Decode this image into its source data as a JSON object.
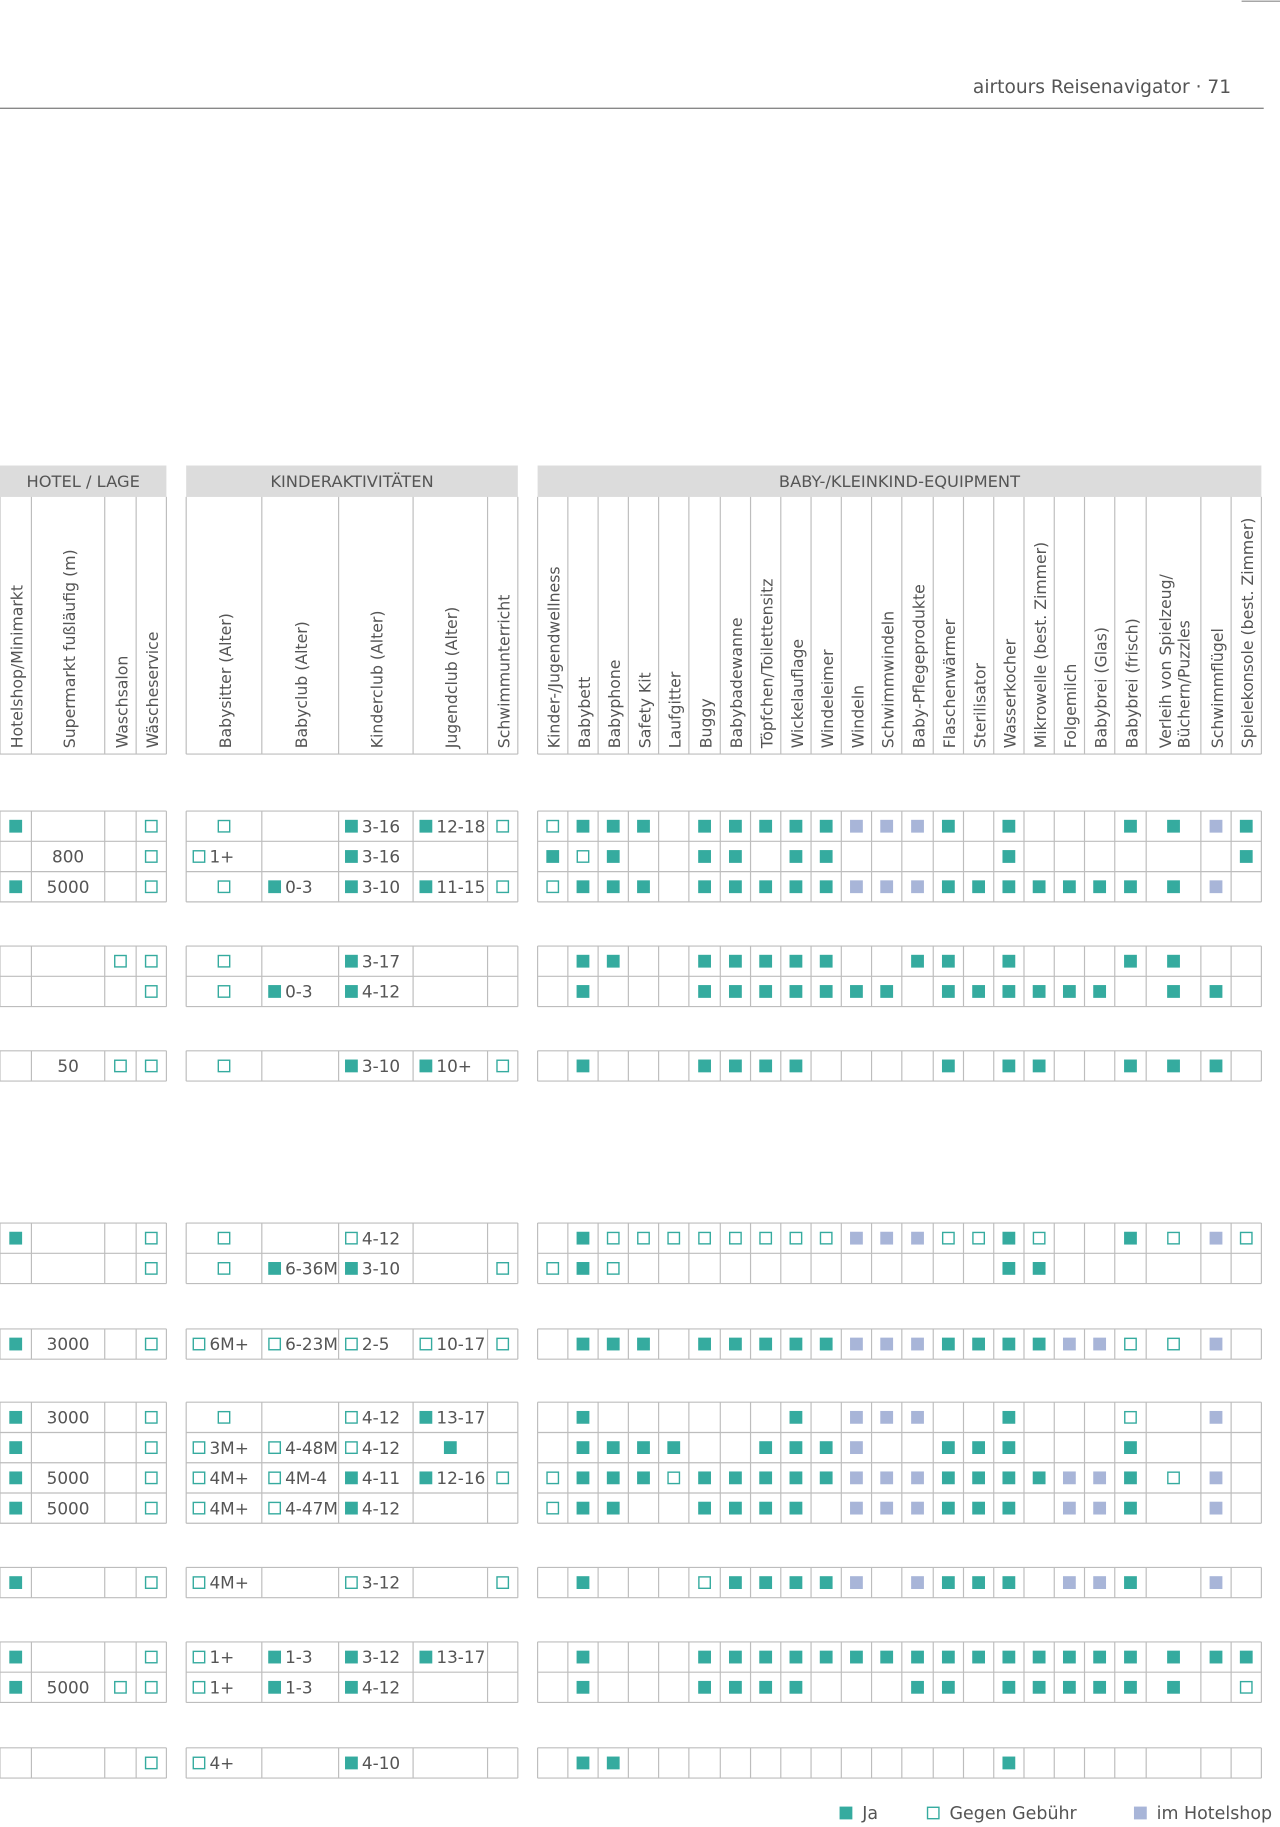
{
  "header": {
    "text": "airtours Reisenavigator · 71"
  },
  "table": {
    "groups": [
      {
        "title": "HOTEL / LAGE",
        "columns": [
          "Hotelshop/Minimarkt",
          "Supermarkt fußläufig (m)",
          "Waschsalon",
          "Wäscheservice"
        ]
      },
      {
        "title": "KINDERAKTIVITÄTEN",
        "columns": [
          "Babysitter (Alter)",
          "Babyclub (Alter)",
          "Kinderclub (Alter)",
          "Jugendclub (Alter)",
          "Schwimmunterricht"
        ]
      },
      {
        "title": "BABY-/KLEINKIND-EQUIPMENT",
        "columns": [
          "Kinder-/Jugendwellness",
          "Babybett",
          "Babyphone",
          "Safety Kit",
          "Laufgitter",
          "Buggy",
          "Babybadewanne",
          "Töpfchen/Toilettensitz",
          "Wickelauflage",
          "Windeleimer",
          "Windeln",
          "Schwimmwindeln",
          "Baby-Pflegeprodukte",
          "Flaschenwärmer",
          "Sterilisator",
          "Wasserkocher",
          "Mikrowelle (best. Zimmer)",
          "Folgemilch",
          "Babybrei (Glas)",
          "Babybrei (frisch)",
          [
            "Verleih von Spielzeug/",
            "Büchern/Puzzles"
          ],
          "Schwimmflügel",
          "Spielekonsole (best. Zimmer)"
        ]
      }
    ],
    "sections": [
      [
        [
          "j",
          null,
          null,
          "g",
          "g",
          null,
          {
            "mark": "j",
            "text": "3-16"
          },
          {
            "mark": "j",
            "text": "12-18"
          },
          "g",
          "g",
          "j",
          "j",
          "j",
          null,
          "j",
          "j",
          "j",
          "j",
          "j",
          "h",
          "h",
          "h",
          "j",
          null,
          "j",
          null,
          null,
          null,
          "j",
          "j",
          "h",
          "j"
        ],
        [
          null,
          "800",
          null,
          "g",
          {
            "mark": "g",
            "text": "1+"
          },
          null,
          {
            "mark": "j",
            "text": "3-16"
          },
          null,
          null,
          "j",
          "g",
          "j",
          null,
          null,
          "j",
          "j",
          null,
          "j",
          "j",
          null,
          null,
          null,
          null,
          null,
          "j",
          null,
          null,
          null,
          null,
          null,
          null,
          "j"
        ],
        [
          "j",
          "5000",
          null,
          "g",
          "g",
          {
            "mark": "j",
            "text": "0-3"
          },
          {
            "mark": "j",
            "text": "3-10"
          },
          {
            "mark": "j",
            "text": "11-15"
          },
          "g",
          "g",
          "j",
          "j",
          "j",
          null,
          "j",
          "j",
          "j",
          "j",
          "j",
          "h",
          "h",
          "h",
          "j",
          "j",
          "j",
          "j",
          "j",
          "j",
          "j",
          "j",
          "h",
          null
        ]
      ],
      [
        [
          null,
          null,
          "g",
          "g",
          "g",
          null,
          {
            "mark": "j",
            "text": "3-17"
          },
          null,
          null,
          null,
          "j",
          "j",
          null,
          null,
          "j",
          "j",
          "j",
          "j",
          "j",
          null,
          null,
          "j",
          "j",
          null,
          "j",
          null,
          null,
          null,
          "j",
          "j",
          null,
          null
        ],
        [
          null,
          null,
          null,
          "g",
          "g",
          {
            "mark": "j",
            "text": "0-3"
          },
          {
            "mark": "j",
            "text": "4-12"
          },
          null,
          null,
          null,
          "j",
          null,
          null,
          null,
          "j",
          "j",
          "j",
          "j",
          "j",
          "j",
          "j",
          null,
          "j",
          "j",
          "j",
          "j",
          "j",
          "j",
          null,
          "j",
          "j",
          null
        ]
      ],
      [
        [
          null,
          "50",
          "g",
          "g",
          "g",
          null,
          {
            "mark": "j",
            "text": "3-10"
          },
          {
            "mark": "j",
            "text": "10+"
          },
          "g",
          null,
          "j",
          null,
          null,
          null,
          "j",
          "j",
          "j",
          "j",
          null,
          null,
          null,
          null,
          "j",
          null,
          "j",
          "j",
          null,
          null,
          "j",
          "j",
          "j",
          null
        ]
      ],
      [
        [
          "j",
          null,
          null,
          "g",
          "g",
          null,
          {
            "mark": "g",
            "text": "4-12"
          },
          null,
          null,
          null,
          "j",
          "g",
          "g",
          "g",
          "g",
          "g",
          "g",
          "g",
          "g",
          "h",
          "h",
          "h",
          "g",
          "g",
          "j",
          "g",
          null,
          null,
          "j",
          "g",
          "h",
          "g"
        ],
        [
          null,
          null,
          null,
          "g",
          "g",
          {
            "mark": "j",
            "text": "6-36M"
          },
          {
            "mark": "j",
            "text": "3-10"
          },
          null,
          "g",
          "g",
          "j",
          "g",
          null,
          null,
          null,
          null,
          null,
          null,
          null,
          null,
          null,
          null,
          null,
          null,
          "j",
          "j",
          null,
          null,
          null,
          null,
          null,
          null
        ]
      ],
      [
        [
          "j",
          "3000",
          null,
          "g",
          {
            "mark": "g",
            "text": "6M+"
          },
          {
            "mark": "g",
            "text": "6-23M"
          },
          {
            "mark": "g",
            "text": "2-5"
          },
          {
            "mark": "g",
            "text": "10-17"
          },
          "g",
          null,
          "j",
          "j",
          "j",
          null,
          "j",
          "j",
          "j",
          "j",
          "j",
          "h",
          "h",
          "h",
          "j",
          "j",
          "j",
          "j",
          "h",
          "h",
          "g",
          "g",
          "h",
          null
        ]
      ],
      [
        [
          "j",
          "3000",
          null,
          "g",
          "g",
          null,
          {
            "mark": "g",
            "text": "4-12"
          },
          {
            "mark": "j",
            "text": "13-17"
          },
          null,
          null,
          "j",
          null,
          null,
          null,
          null,
          null,
          null,
          "j",
          null,
          "h",
          "h",
          "h",
          null,
          null,
          "j",
          null,
          null,
          null,
          "g",
          null,
          "h",
          null
        ],
        [
          "j",
          null,
          null,
          "g",
          {
            "mark": "g",
            "text": "3M+"
          },
          {
            "mark": "g",
            "text": "4-48M"
          },
          {
            "mark": "g",
            "text": "4-12"
          },
          "j",
          null,
          null,
          "j",
          "j",
          "j",
          "j",
          null,
          null,
          "j",
          "j",
          "j",
          "h",
          null,
          null,
          "j",
          "j",
          "j",
          null,
          null,
          null,
          "j",
          null,
          null,
          null
        ],
        [
          "j",
          "5000",
          null,
          "g",
          {
            "mark": "g",
            "text": "4M+"
          },
          {
            "mark": "g",
            "text": "4M-4"
          },
          {
            "mark": "j",
            "text": "4-11"
          },
          {
            "mark": "j",
            "text": "12-16"
          },
          "g",
          "g",
          "j",
          "j",
          "j",
          "g",
          "j",
          "j",
          "j",
          "j",
          "j",
          "h",
          "h",
          "h",
          "j",
          "j",
          "j",
          "j",
          "h",
          "h",
          "j",
          "g",
          "h",
          null
        ],
        [
          "j",
          "5000",
          null,
          "g",
          {
            "mark": "g",
            "text": "4M+"
          },
          {
            "mark": "g",
            "text": "4-47M"
          },
          {
            "mark": "j",
            "text": "4-12"
          },
          null,
          null,
          "g",
          "j",
          "j",
          null,
          null,
          "j",
          "j",
          "j",
          "j",
          null,
          "h",
          "h",
          "h",
          "j",
          "j",
          "j",
          null,
          "h",
          "h",
          "j",
          null,
          "h",
          null
        ]
      ],
      [
        [
          "j",
          null,
          null,
          "g",
          {
            "mark": "g",
            "text": "4M+"
          },
          null,
          {
            "mark": "g",
            "text": "3-12"
          },
          null,
          "g",
          null,
          "j",
          null,
          null,
          null,
          "g",
          "j",
          "j",
          "j",
          "j",
          "h",
          null,
          "h",
          "j",
          "j",
          "j",
          null,
          "h",
          "h",
          "j",
          null,
          "h",
          null
        ]
      ],
      [
        [
          "j",
          null,
          null,
          "g",
          {
            "mark": "g",
            "text": "1+"
          },
          {
            "mark": "j",
            "text": "1-3"
          },
          {
            "mark": "j",
            "text": "3-12"
          },
          {
            "mark": "j",
            "text": "13-17"
          },
          null,
          null,
          "j",
          null,
          null,
          null,
          "j",
          "j",
          "j",
          "j",
          "j",
          "j",
          "j",
          "j",
          "j",
          "j",
          "j",
          "j",
          "j",
          "j",
          "j",
          "j",
          "j",
          "j"
        ],
        [
          "j",
          "5000",
          "g",
          "g",
          {
            "mark": "g",
            "text": "1+"
          },
          {
            "mark": "j",
            "text": "1-3"
          },
          {
            "mark": "j",
            "text": "4-12"
          },
          null,
          null,
          null,
          "j",
          null,
          null,
          null,
          "j",
          "j",
          "j",
          "j",
          null,
          null,
          null,
          "j",
          "j",
          null,
          "j",
          "j",
          "j",
          "j",
          "j",
          "j",
          null,
          "g"
        ]
      ],
      [
        [
          null,
          null,
          null,
          "g",
          {
            "mark": "g",
            "text": "4+"
          },
          null,
          {
            "mark": "j",
            "text": "4-10"
          },
          null,
          null,
          null,
          "j",
          "j",
          null,
          null,
          null,
          null,
          null,
          null,
          null,
          null,
          null,
          null,
          null,
          null,
          "j",
          null,
          null,
          null,
          null,
          null,
          null,
          null
        ]
      ]
    ]
  },
  "legend": [
    {
      "mark": "j",
      "label": "Ja"
    },
    {
      "mark": "g",
      "label": "Gegen Gebühr"
    },
    {
      "mark": "h",
      "label": "im Hotelshop"
    }
  ]
}
